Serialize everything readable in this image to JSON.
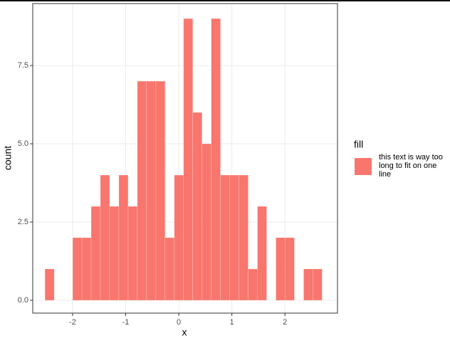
{
  "chart_data": {
    "type": "histogram",
    "x_label": "x",
    "y_label": "count",
    "bins": [
      -2.52,
      -2.346,
      -2.172,
      -1.998,
      -1.824,
      -1.65,
      -1.476,
      -1.302,
      -1.128,
      -0.954,
      -0.78,
      -0.606,
      -0.432,
      -0.258,
      -0.084,
      0.09,
      0.264,
      0.438,
      0.612,
      0.786,
      0.96,
      1.134,
      1.308,
      1.482,
      1.656,
      1.83,
      2.004,
      2.178,
      2.352,
      2.526,
      2.7
    ],
    "series": [
      {
        "name": "this text is way too long to fit on one line",
        "color": "#f8766d",
        "values": [
          1,
          0,
          0,
          2,
          2,
          3,
          4,
          3,
          4,
          3,
          7,
          7,
          7,
          2,
          4,
          9,
          6,
          5,
          9,
          4,
          4,
          4,
          1,
          3,
          0,
          2,
          2,
          0,
          1,
          1
        ]
      }
    ],
    "legend_title": "fill",
    "xlim": [
      -2.75,
      2.99
    ],
    "xticks": [
      -2,
      -1,
      0,
      1,
      2
    ],
    "ylim": [
      -0.41,
      9.48
    ],
    "yticks": [
      {
        "value": 0,
        "label": "0.0"
      },
      2.5,
      {
        "value": 5,
        "label": "5.0"
      },
      7.5
    ],
    "grid": true
  }
}
